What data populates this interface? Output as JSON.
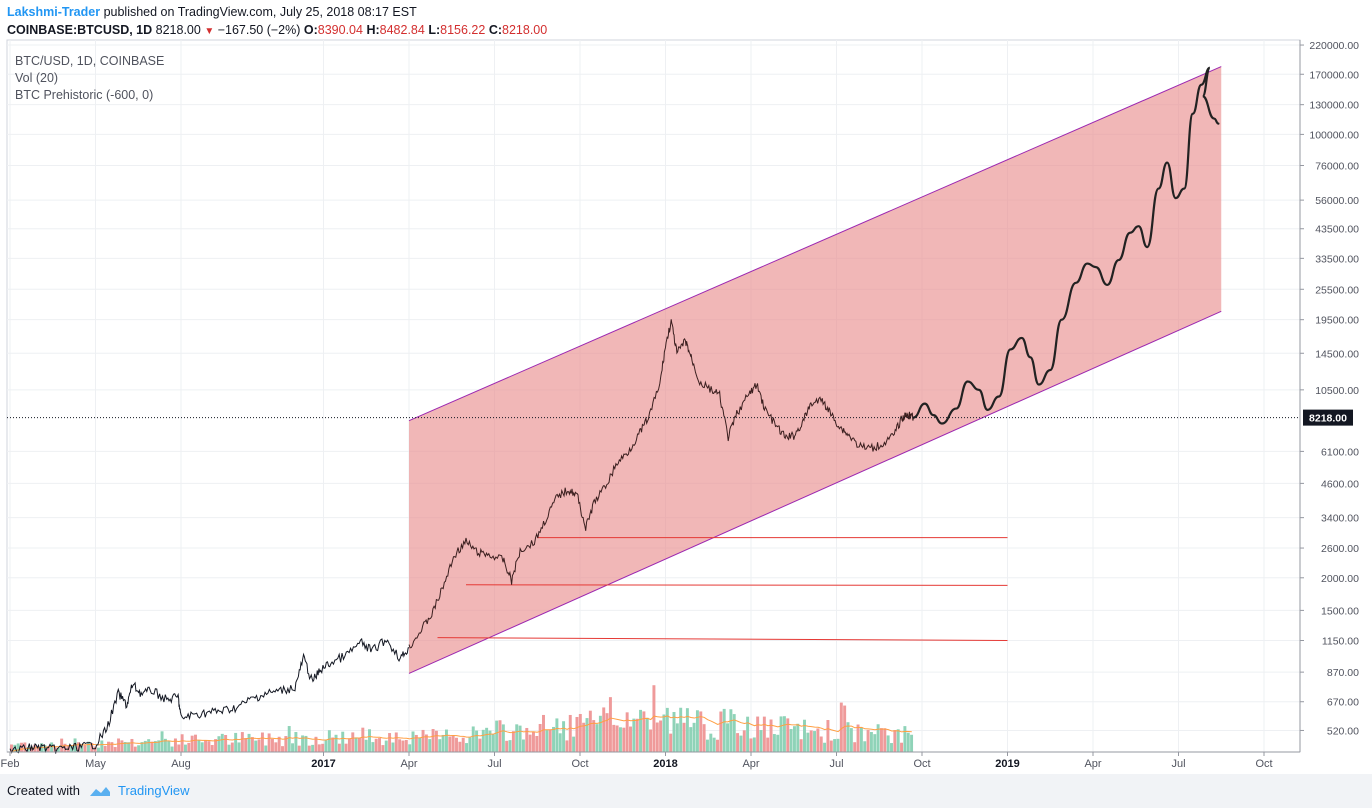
{
  "header": {
    "author": "Lakshmi-Trader",
    "published": " published on TradingView.com, July 25, 2018 08:17 EST",
    "symbol": "COINBASE:BTCUSD, 1D",
    "last": "8218.00",
    "change": "−167.50 (−2%)",
    "o_label": "O:",
    "o": "8390.04",
    "h_label": "H:",
    "h": "8482.84",
    "l_label": "L:",
    "l": "8156.22",
    "c_label": "C:",
    "c": "8218.00"
  },
  "legend": {
    "title": "BTC/USD, 1D, COINBASE",
    "vol": "Vol (20)",
    "indicator": "BTC Prehistoric (-600, 0)"
  },
  "footer": {
    "created": "Created with",
    "brand": "TradingView"
  },
  "colors": {
    "channel_fill": "#e88a8a",
    "channel_border": "#9c27b0",
    "support": "#e53935",
    "up_vol": "#8fd3b8",
    "down_vol": "#ef9a9a",
    "vol_ma": "#ff9f43",
    "price": "#131722"
  },
  "chart_data": {
    "type": "line",
    "scale": "log",
    "ylim": [
      430,
      230000
    ],
    "y_ticks": [
      {
        "v": 220000,
        "label": "220000.00"
      },
      {
        "v": 170000,
        "label": "170000.00"
      },
      {
        "v": 130000,
        "label": "130000.00"
      },
      {
        "v": 100000,
        "label": "100000.00"
      },
      {
        "v": 76000,
        "label": "76000.00"
      },
      {
        "v": 56000,
        "label": "56000.00"
      },
      {
        "v": 43500,
        "label": "43500.00"
      },
      {
        "v": 33500,
        "label": "33500.00"
      },
      {
        "v": 25500,
        "label": "25500.00"
      },
      {
        "v": 19500,
        "label": "19500.00"
      },
      {
        "v": 14500,
        "label": "14500.00"
      },
      {
        "v": 10500,
        "label": "10500.00"
      },
      {
        "v": 6100,
        "label": "6100.00"
      },
      {
        "v": 4600,
        "label": "4600.00"
      },
      {
        "v": 3400,
        "label": "3400.00"
      },
      {
        "v": 2600,
        "label": "2600.00"
      },
      {
        "v": 2000,
        "label": "2000.00"
      },
      {
        "v": 1500,
        "label": "1500.00"
      },
      {
        "v": 1150,
        "label": "1150.00"
      },
      {
        "v": 870,
        "label": "870.00"
      },
      {
        "v": 670,
        "label": "670.00"
      },
      {
        "v": 520,
        "label": "520.00"
      }
    ],
    "last_price": {
      "v": 8218,
      "label": "8218.00"
    },
    "x_ticks": [
      {
        "m": 0,
        "label": "Feb"
      },
      {
        "m": 3,
        "label": "May"
      },
      {
        "m": 6,
        "label": "Aug"
      },
      {
        "m": 11,
        "label": "2017",
        "bold": true
      },
      {
        "m": 14,
        "label": "Apr"
      },
      {
        "m": 17,
        "label": "Jul"
      },
      {
        "m": 20,
        "label": "Oct"
      },
      {
        "m": 23,
        "label": "2018",
        "bold": true
      },
      {
        "m": 26,
        "label": "Apr"
      },
      {
        "m": 29,
        "label": "Jul"
      },
      {
        "m": 32,
        "label": "Oct"
      },
      {
        "m": 35,
        "label": "2019",
        "bold": true
      },
      {
        "m": 38,
        "label": "Apr"
      },
      {
        "m": 41,
        "label": "Jul"
      },
      {
        "m": 44,
        "label": "Oct"
      }
    ],
    "price_prehistoric": [
      [
        0,
        432
      ],
      [
        0.6,
        445
      ],
      [
        1,
        450
      ],
      [
        1.5,
        440
      ],
      [
        2,
        445
      ],
      [
        2.5,
        450
      ],
      [
        3,
        460
      ],
      [
        3.4,
        530
      ],
      [
        3.8,
        720
      ],
      [
        4.1,
        650
      ],
      [
        4.3,
        780
      ],
      [
        4.6,
        720
      ],
      [
        5,
        740
      ],
      [
        5.5,
        680
      ],
      [
        5.9,
        700
      ],
      [
        6,
        580
      ],
      [
        6.5,
        600
      ],
      [
        7,
        610
      ],
      [
        7.5,
        620
      ],
      [
        8,
        640
      ],
      [
        8.5,
        690
      ],
      [
        9,
        720
      ],
      [
        9.5,
        740
      ],
      [
        10,
        760
      ],
      [
        10.3,
        990
      ],
      [
        10.6,
        800
      ],
      [
        10.9,
        890
      ],
      [
        11.3,
        950
      ],
      [
        11.8,
        1010
      ],
      [
        12.3,
        1130
      ],
      [
        12.7,
        1050
      ],
      [
        13.2,
        1160
      ],
      [
        13.7,
        980
      ],
      [
        14,
        1080
      ]
    ],
    "price": [
      [
        14,
        1080
      ],
      [
        14.4,
        1250
      ],
      [
        14.8,
        1450
      ],
      [
        15.2,
        1850
      ],
      [
        15.6,
        2450
      ],
      [
        16,
        2750
      ],
      [
        16.4,
        2500
      ],
      [
        16.8,
        2450
      ],
      [
        17.3,
        2350
      ],
      [
        17.6,
        1950
      ],
      [
        17.9,
        2550
      ],
      [
        18.4,
        2750
      ],
      [
        18.8,
        3350
      ],
      [
        19.2,
        4100
      ],
      [
        19.6,
        4350
      ],
      [
        19.9,
        4150
      ],
      [
        20.2,
        3100
      ],
      [
        20.5,
        3900
      ],
      [
        20.9,
        4500
      ],
      [
        21.3,
        5500
      ],
      [
        21.7,
        6100
      ],
      [
        22.1,
        7200
      ],
      [
        22.4,
        8200
      ],
      [
        22.8,
        11000
      ],
      [
        23,
        15500
      ],
      [
        23.2,
        19200
      ],
      [
        23.4,
        14500
      ],
      [
        23.7,
        16200
      ],
      [
        23.9,
        14000
      ],
      [
        24.2,
        11200
      ],
      [
        24.6,
        10500
      ],
      [
        24.9,
        10000
      ],
      [
        25.2,
        6900
      ],
      [
        25.5,
        8500
      ],
      [
        25.9,
        10000
      ],
      [
        26.2,
        11000
      ],
      [
        26.5,
        8800
      ],
      [
        26.9,
        7600
      ],
      [
        27.2,
        6900
      ],
      [
        27.5,
        7000
      ],
      [
        27.8,
        7800
      ],
      [
        28.1,
        9300
      ],
      [
        28.5,
        9600
      ],
      [
        28.8,
        8500
      ],
      [
        29.1,
        7600
      ],
      [
        29.4,
        7100
      ],
      [
        29.8,
        6400
      ],
      [
        30.2,
        6250
      ],
      [
        30.6,
        6500
      ],
      [
        31,
        7000
      ],
      [
        31.3,
        8200
      ],
      [
        31.5,
        8450
      ],
      [
        31.7,
        8218
      ]
    ],
    "projection": [
      [
        31.7,
        8218
      ],
      [
        32.1,
        9300
      ],
      [
        32.4,
        8400
      ],
      [
        32.7,
        7800
      ],
      [
        33.2,
        8900
      ],
      [
        33.6,
        11300
      ],
      [
        34,
        10500
      ],
      [
        34.3,
        8800
      ],
      [
        34.7,
        9900
      ],
      [
        35.1,
        15000
      ],
      [
        35.5,
        16600
      ],
      [
        35.8,
        14000
      ],
      [
        36.1,
        11000
      ],
      [
        36.5,
        12500
      ],
      [
        36.9,
        19500
      ],
      [
        37.4,
        27000
      ],
      [
        37.8,
        32000
      ],
      [
        38.1,
        31000
      ],
      [
        38.5,
        26500
      ],
      [
        38.9,
        33000
      ],
      [
        39.3,
        42000
      ],
      [
        39.6,
        44500
      ],
      [
        39.9,
        37000
      ],
      [
        40.3,
        62000
      ],
      [
        40.6,
        78000
      ],
      [
        40.9,
        57000
      ],
      [
        41.2,
        62000
      ],
      [
        41.5,
        120000
      ],
      [
        41.8,
        155000
      ],
      [
        42.1,
        180000
      ],
      [
        41.85,
        140000
      ],
      [
        42.25,
        115000
      ],
      [
        42.4,
        110000
      ]
    ],
    "channel": {
      "upper": [
        [
          14,
          8000
        ],
        [
          42.5,
          182000
        ]
      ],
      "lower": [
        [
          14,
          860
        ],
        [
          42.5,
          21000
        ]
      ]
    },
    "support_lines": [
      [
        [
          15,
          1180
        ],
        [
          35,
          1150
        ]
      ],
      [
        [
          16,
          1880
        ],
        [
          35,
          1870
        ]
      ],
      [
        [
          18.5,
          2850
        ],
        [
          35,
          2850
        ]
      ]
    ],
    "volume": {
      "count": 270,
      "max_label": ""
    }
  }
}
